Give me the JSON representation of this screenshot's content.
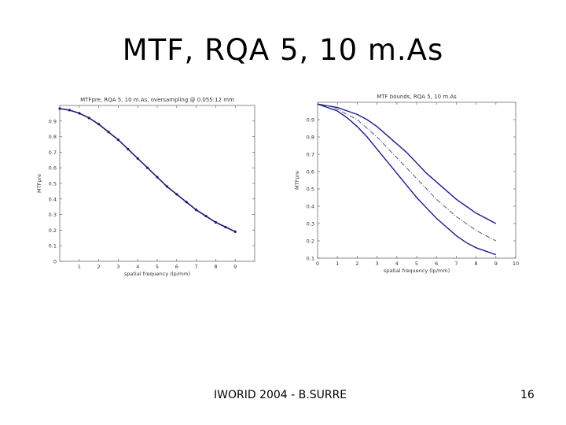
{
  "slide": {
    "title": "MTF, RQA 5, 10 m.As",
    "footer": "IWORID 2004 - B.SURRE",
    "page_number": "16"
  },
  "chart_data": [
    {
      "type": "scatter",
      "title": "MTFpre, RQA 5, 10 m.As, oversampling @ 0.055:12 mm",
      "xlabel": "spatial frequency (lp/mm)",
      "ylabel": "MTFpre",
      "xlim": [
        0,
        10
      ],
      "ylim": [
        0,
        1
      ],
      "xticks": [
        "1",
        "2",
        "3",
        "4",
        "5",
        "6",
        "7",
        "8",
        "9"
      ],
      "xtick_values": [
        1,
        2,
        3,
        4,
        5,
        6,
        7,
        8,
        9
      ],
      "yticks": [
        "0",
        "0.1",
        "0.2",
        "0.3",
        "0.4",
        "0.5",
        "0.6",
        "0.7",
        "0.8",
        "0.9"
      ],
      "ytick_values": [
        0,
        0.1,
        0.2,
        0.3,
        0.4,
        0.5,
        0.6,
        0.7,
        0.8,
        0.9
      ],
      "grid": false,
      "series": [
        {
          "color": "#1a1a7a",
          "x": [
            0.0,
            0.5,
            1.0,
            1.5,
            2.0,
            2.5,
            3.0,
            3.5,
            4.0,
            4.5,
            5.0,
            5.5,
            6.0,
            6.5,
            7.0,
            7.5,
            8.0,
            8.5,
            9.0
          ],
          "y": [
            0.98,
            0.97,
            0.95,
            0.92,
            0.88,
            0.83,
            0.78,
            0.72,
            0.66,
            0.6,
            0.54,
            0.48,
            0.43,
            0.38,
            0.33,
            0.29,
            0.25,
            0.22,
            0.19
          ]
        }
      ]
    },
    {
      "type": "line",
      "title": "MTF bounds, RQA 5, 10 m.As",
      "xlabel": "spatial frequency (lp/mm)",
      "ylabel": "MTFpre",
      "xlim": [
        0,
        10
      ],
      "ylim": [
        0.1,
        1
      ],
      "xticks": [
        "0",
        "1",
        "2",
        "3",
        "4",
        "5",
        "6",
        "7",
        "8",
        "9",
        "10"
      ],
      "xtick_values": [
        0,
        1,
        2,
        3,
        4,
        5,
        6,
        7,
        8,
        9,
        10
      ],
      "yticks": [
        "0.1",
        "0.2",
        "0.3",
        "0.4",
        "0.5",
        "0.6",
        "0.7",
        "0.8",
        "0.9"
      ],
      "ytick_values": [
        0.1,
        0.2,
        0.3,
        0.4,
        0.5,
        0.6,
        0.7,
        0.8,
        0.9
      ],
      "grid": false,
      "series": [
        {
          "style": "solid",
          "color": "#1a1a9a",
          "x": [
            0,
            0.5,
            1,
            1.5,
            2,
            2.5,
            3,
            3.5,
            4,
            4.5,
            5,
            5.5,
            6,
            6.5,
            7,
            7.5,
            8,
            8.5,
            9
          ],
          "y": [
            0.99,
            0.98,
            0.97,
            0.95,
            0.93,
            0.9,
            0.86,
            0.81,
            0.76,
            0.71,
            0.65,
            0.59,
            0.54,
            0.49,
            0.44,
            0.4,
            0.36,
            0.33,
            0.3
          ]
        },
        {
          "style": "dashdot",
          "color": "#555577",
          "x": [
            0,
            0.5,
            1,
            1.5,
            2,
            2.5,
            3,
            3.5,
            4,
            4.5,
            5,
            5.5,
            6,
            6.5,
            7,
            7.5,
            8,
            8.5,
            9
          ],
          "y": [
            0.99,
            0.98,
            0.96,
            0.93,
            0.9,
            0.85,
            0.8,
            0.74,
            0.68,
            0.62,
            0.56,
            0.5,
            0.44,
            0.39,
            0.34,
            0.3,
            0.26,
            0.23,
            0.2
          ]
        },
        {
          "style": "solid",
          "color": "#1a1a9a",
          "x": [
            0,
            0.5,
            1,
            1.5,
            2,
            2.5,
            3,
            3.5,
            4,
            4.5,
            5,
            5.5,
            6,
            6.5,
            7,
            7.5,
            8,
            8.5,
            9
          ],
          "y": [
            0.99,
            0.97,
            0.95,
            0.91,
            0.86,
            0.8,
            0.73,
            0.66,
            0.59,
            0.52,
            0.45,
            0.39,
            0.33,
            0.28,
            0.23,
            0.19,
            0.16,
            0.14,
            0.12
          ]
        }
      ]
    }
  ]
}
